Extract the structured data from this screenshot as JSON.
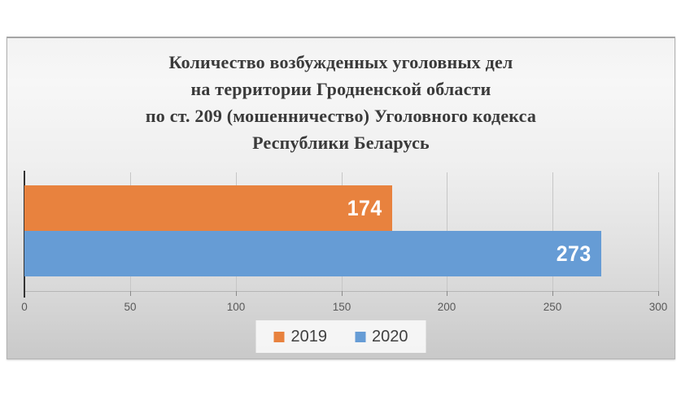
{
  "page": {
    "background_color": "#ffffff",
    "panel_border_color": "#b3b3b3"
  },
  "chart_data": {
    "type": "bar",
    "orientation": "horizontal",
    "title": "Количество возбужденных уголовных дел\nна территории Гродненской области\nпо ст. 209 (мошенничество) Уголовного кодекса\nРеспублики Беларусь",
    "title_color": "#3a3a3a",
    "series": [
      {
        "name": "2019",
        "value": 174,
        "color": "#E8823E"
      },
      {
        "name": "2020",
        "value": 273,
        "color": "#669CD5"
      }
    ],
    "x_axis": {
      "min": 0,
      "max": 300,
      "tick_interval": 50,
      "tick_labels": [
        "0",
        "50",
        "100",
        "150",
        "200",
        "250",
        "300"
      ],
      "tick_label_color": "#595959",
      "axis_line_color": "#333333"
    },
    "grid": true,
    "gridline_color": "#c6c6c6",
    "value_labels": {
      "visible": true,
      "position": "inside-end",
      "color": "#ffffff"
    },
    "legend": {
      "position": "bottom",
      "entries": [
        "2019",
        "2020"
      ],
      "label_color": "#404040"
    }
  }
}
